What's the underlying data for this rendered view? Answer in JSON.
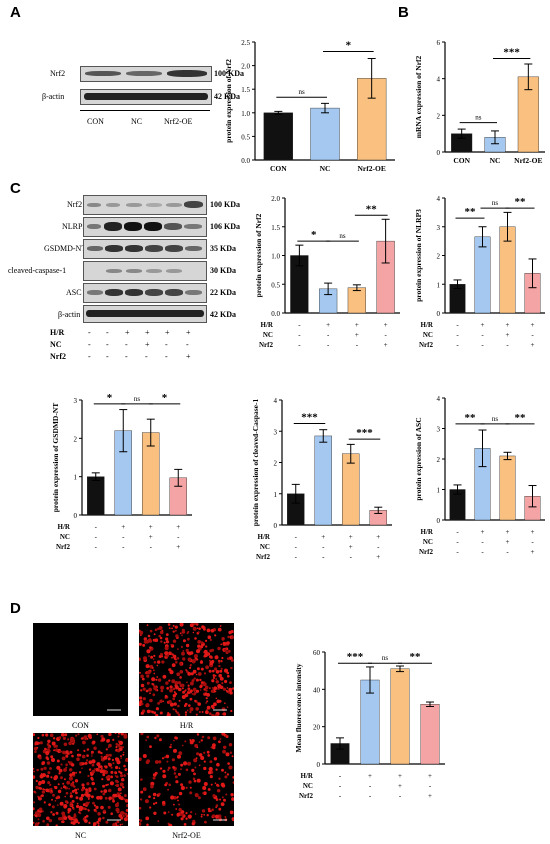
{
  "panels": {
    "A": "A",
    "B": "B",
    "C": "C",
    "D": "D"
  },
  "colors": {
    "black": "#111111",
    "blue": "#a4c8f0",
    "orange": "#f9c07f",
    "pink": "#f4a4a4"
  },
  "blotA": {
    "rows": [
      {
        "name": "Nrf2",
        "kda": "100 KDa"
      },
      {
        "name": "β-actin",
        "kda": "42 KDa"
      }
    ],
    "groups": [
      "CON",
      "NC",
      "Nrf2-OE"
    ]
  },
  "blotC": {
    "rows": [
      {
        "name": "Nrf2",
        "kda": "100 KDa"
      },
      {
        "name": "NLRP3",
        "kda": "106 KDa"
      },
      {
        "name": "GSDMD-NT",
        "kda": "35 KDa"
      },
      {
        "name": "cleaved-caspase-1",
        "kda": "30 KDa"
      },
      {
        "name": "ASC",
        "kda": "22 KDa"
      },
      {
        "name": "β-actin",
        "kda": "42 KDa"
      }
    ],
    "conditions": [
      {
        "label": "H/R",
        "signs": [
          "-",
          "-",
          "+",
          "+",
          "+",
          "+"
        ]
      },
      {
        "label": "NC",
        "signs": [
          "-",
          "-",
          "-",
          "+",
          "-",
          "-"
        ]
      },
      {
        "label": "Nrf2",
        "signs": [
          "-",
          "-",
          "-",
          "-",
          "-",
          "+"
        ]
      }
    ]
  },
  "micro": {
    "captions": [
      "CON",
      "H/R",
      "NC",
      "Nrf2-OE"
    ]
  },
  "chart_data": [
    {
      "id": "A-chart",
      "type": "bar",
      "ylabel": "protein expression of Nrf2",
      "ylim": [
        0,
        2.5
      ],
      "yticks": [
        0.0,
        0.5,
        1.0,
        1.5,
        2.0,
        2.5
      ],
      "ytick_labels": [
        "0.0",
        "0.5",
        "1.0",
        "1.5",
        "2.0",
        "2.5"
      ],
      "categories": [
        "CON",
        "NC",
        "Nrf2-OE"
      ],
      "values": [
        1.0,
        1.1,
        1.73
      ],
      "errors": [
        0.03,
        0.1,
        0.42
      ],
      "colors": [
        "#111111",
        "#a4c8f0",
        "#f9c07f"
      ],
      "sig": [
        {
          "from": 0,
          "to": 1,
          "label": "ns",
          "y": 1.33
        },
        {
          "from": 1,
          "to": 2,
          "label": "*",
          "y": 2.3
        }
      ]
    },
    {
      "id": "B-chart",
      "type": "bar",
      "ylabel": "mRNA expression of Nrf2",
      "ylim": [
        0,
        6
      ],
      "yticks": [
        0,
        2,
        4,
        6
      ],
      "ytick_labels": [
        "0",
        "2",
        "4",
        "6"
      ],
      "categories": [
        "CON",
        "NC",
        "Nrf2-OE"
      ],
      "values": [
        1.0,
        0.8,
        4.1
      ],
      "errors": [
        0.25,
        0.35,
        0.7
      ],
      "colors": [
        "#111111",
        "#a4c8f0",
        "#f9c07f"
      ],
      "sig": [
        {
          "from": 0,
          "to": 1,
          "label": "ns",
          "y": 1.6
        },
        {
          "from": 1,
          "to": 2,
          "label": "***",
          "y": 5.1
        }
      ]
    },
    {
      "id": "C-nrf2",
      "type": "bar",
      "ylabel": "protein expression of Nrf2",
      "ylim": [
        0,
        2.0
      ],
      "yticks": [
        0.0,
        0.5,
        1.0,
        1.5,
        2.0
      ],
      "ytick_labels": [
        "0.0",
        "0.5",
        "1.0",
        "1.5",
        "2.0"
      ],
      "values": [
        1.0,
        0.42,
        0.44,
        1.25
      ],
      "errors": [
        0.18,
        0.1,
        0.05,
        0.38
      ],
      "colors": [
        "#111111",
        "#a4c8f0",
        "#f9c07f",
        "#f4a4a4"
      ],
      "conditions": [
        {
          "label": "H/R",
          "signs": [
            "-",
            "+",
            "+",
            "+"
          ]
        },
        {
          "label": "NC",
          "signs": [
            "-",
            "-",
            "+",
            "-"
          ]
        },
        {
          "label": "Nrf2",
          "signs": [
            "-",
            "-",
            "-",
            "+"
          ]
        }
      ],
      "sig": [
        {
          "from": 0,
          "to": 1,
          "label": "*",
          "y": 1.25
        },
        {
          "from": 1,
          "to": 2,
          "label": "ns",
          "y": 1.25
        },
        {
          "from": 2,
          "to": 3,
          "label": "**",
          "y": 1.7
        }
      ]
    },
    {
      "id": "C-nlrp3",
      "type": "bar",
      "ylabel": "protein expression of NLRP3",
      "ylim": [
        0,
        4
      ],
      "yticks": [
        0,
        1,
        2,
        3,
        4
      ],
      "ytick_labels": [
        "0",
        "1",
        "2",
        "3",
        "4"
      ],
      "values": [
        1.0,
        2.65,
        3.0,
        1.38
      ],
      "errors": [
        0.15,
        0.35,
        0.5,
        0.5
      ],
      "colors": [
        "#111111",
        "#a4c8f0",
        "#f9c07f",
        "#f4a4a4"
      ],
      "conditions": [
        {
          "label": "H/R",
          "signs": [
            "-",
            "+",
            "+",
            "+"
          ]
        },
        {
          "label": "NC",
          "signs": [
            "-",
            "-",
            "+",
            "-"
          ]
        },
        {
          "label": "Nrf2",
          "signs": [
            "-",
            "-",
            "-",
            "+"
          ]
        }
      ],
      "sig": [
        {
          "from": 0,
          "to": 1,
          "label": "**",
          "y": 3.3
        },
        {
          "from": 1,
          "to": 2,
          "label": "ns",
          "y": 3.65
        },
        {
          "from": 2,
          "to": 3,
          "label": "**",
          "y": 3.65
        }
      ]
    },
    {
      "id": "C-gsdmd",
      "type": "bar",
      "ylabel": "protein expression of GSDMD-NT",
      "ylim": [
        0,
        3
      ],
      "yticks": [
        0,
        1,
        2,
        3
      ],
      "ytick_labels": [
        "0",
        "1",
        "2",
        "3"
      ],
      "values": [
        1.0,
        2.2,
        2.15,
        0.97
      ],
      "errors": [
        0.1,
        0.55,
        0.35,
        0.22
      ],
      "colors": [
        "#111111",
        "#a4c8f0",
        "#f9c07f",
        "#f4a4a4"
      ],
      "conditions": [
        {
          "label": "H/R",
          "signs": [
            "-",
            "+",
            "+",
            "+"
          ]
        },
        {
          "label": "NC",
          "signs": [
            "-",
            "-",
            "+",
            "-"
          ]
        },
        {
          "label": "Nrf2",
          "signs": [
            "-",
            "-",
            "-",
            "+"
          ]
        }
      ],
      "sig": [
        {
          "from": 0,
          "to": 1,
          "label": "*",
          "y": 2.9
        },
        {
          "from": 1,
          "to": 2,
          "label": "ns",
          "y": 2.9
        },
        {
          "from": 2,
          "to": 3,
          "label": "*",
          "y": 2.9
        }
      ]
    },
    {
      "id": "C-caspase",
      "type": "bar",
      "ylabel": "protein expression of cleaved-Caspase-1",
      "ylim": [
        0,
        4
      ],
      "yticks": [
        0,
        1,
        2,
        3,
        4
      ],
      "ytick_labels": [
        "0",
        "1",
        "2",
        "3",
        "4"
      ],
      "values": [
        1.0,
        2.85,
        2.28,
        0.47
      ],
      "errors": [
        0.3,
        0.2,
        0.3,
        0.1
      ],
      "colors": [
        "#111111",
        "#a4c8f0",
        "#f9c07f",
        "#f4a4a4"
      ],
      "conditions": [
        {
          "label": "H/R",
          "signs": [
            "-",
            "+",
            "+",
            "+"
          ]
        },
        {
          "label": "NC",
          "signs": [
            "-",
            "-",
            "+",
            "-"
          ]
        },
        {
          "label": "Nrf2",
          "signs": [
            "-",
            "-",
            "-",
            "+"
          ]
        }
      ],
      "sig": [
        {
          "from": 0,
          "to": 1,
          "label": "***",
          "y": 3.25
        },
        {
          "from": 2,
          "to": 3,
          "label": "***",
          "y": 2.75
        }
      ]
    },
    {
      "id": "C-asc",
      "type": "bar",
      "ylabel": "protein expression of ASC",
      "ylim": [
        0,
        4
      ],
      "yticks": [
        0,
        1,
        2,
        3,
        4
      ],
      "ytick_labels": [
        "0",
        "1",
        "2",
        "3",
        "4"
      ],
      "values": [
        1.0,
        2.35,
        2.1,
        0.78
      ],
      "errors": [
        0.15,
        0.6,
        0.12,
        0.35
      ],
      "colors": [
        "#111111",
        "#a4c8f0",
        "#f9c07f",
        "#f4a4a4"
      ],
      "conditions": [
        {
          "label": "H/R",
          "signs": [
            "-",
            "+",
            "+",
            "+"
          ]
        },
        {
          "label": "NC",
          "signs": [
            "-",
            "-",
            "+",
            "-"
          ]
        },
        {
          "label": "Nrf2",
          "signs": [
            "-",
            "-",
            "-",
            "+"
          ]
        }
      ],
      "sig": [
        {
          "from": 0,
          "to": 1,
          "label": "**",
          "y": 3.15
        },
        {
          "from": 1,
          "to": 2,
          "label": "ns",
          "y": 3.15
        },
        {
          "from": 2,
          "to": 3,
          "label": "**",
          "y": 3.15
        }
      ]
    },
    {
      "id": "D-chart",
      "type": "bar",
      "ylabel": "Mean fluorescence intensity",
      "ylim": [
        0,
        60
      ],
      "yticks": [
        0,
        20,
        40,
        60
      ],
      "ytick_labels": [
        "0",
        "20",
        "40",
        "60"
      ],
      "values": [
        11.0,
        45.0,
        51.0,
        32.0
      ],
      "errors": [
        3.0,
        7.0,
        1.5,
        1.2
      ],
      "colors": [
        "#111111",
        "#a4c8f0",
        "#f9c07f",
        "#f4a4a4"
      ],
      "conditions": [
        {
          "label": "H/R",
          "signs": [
            "-",
            "+",
            "+",
            "+"
          ]
        },
        {
          "label": "NC",
          "signs": [
            "-",
            "-",
            "+",
            "-"
          ]
        },
        {
          "label": "Nrf2",
          "signs": [
            "-",
            "-",
            "-",
            "+"
          ]
        }
      ],
      "sig": [
        {
          "from": 0,
          "to": 1,
          "label": "***",
          "y": 54
        },
        {
          "from": 1,
          "to": 2,
          "label": "ns",
          "y": 54
        },
        {
          "from": 2,
          "to": 3,
          "label": "**",
          "y": 54
        }
      ]
    }
  ]
}
